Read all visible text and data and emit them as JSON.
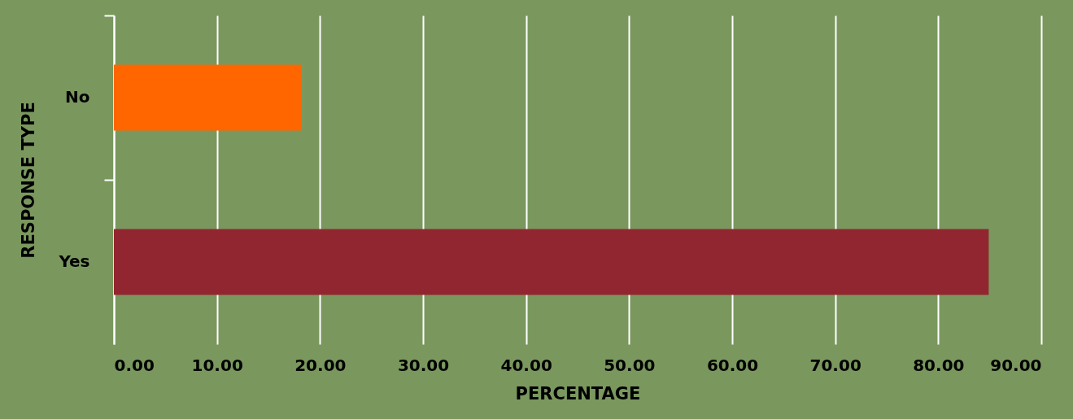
{
  "chart_data": {
    "type": "bar",
    "orientation": "horizontal",
    "xlabel": "PERCENTAGE",
    "ylabel": "RESPONSE TYPE",
    "categories": [
      "No",
      "Yes"
    ],
    "values": [
      18.2,
      84.9
    ],
    "colors": [
      "#ff6600",
      "#922630"
    ],
    "xlim": [
      0,
      90
    ],
    "xticks": [
      {
        "value": 0,
        "label": "0.00"
      },
      {
        "value": 10,
        "label": "10.00"
      },
      {
        "value": 20,
        "label": "20.00"
      },
      {
        "value": 30,
        "label": "30.00"
      },
      {
        "value": 40,
        "label": "40.00"
      },
      {
        "value": 50,
        "label": "50.00"
      },
      {
        "value": 60,
        "label": "60.00"
      },
      {
        "value": 70,
        "label": "70.00"
      },
      {
        "value": 80,
        "label": "80.00"
      },
      {
        "value": 90,
        "label": "90.00"
      }
    ],
    "grid": "x"
  }
}
